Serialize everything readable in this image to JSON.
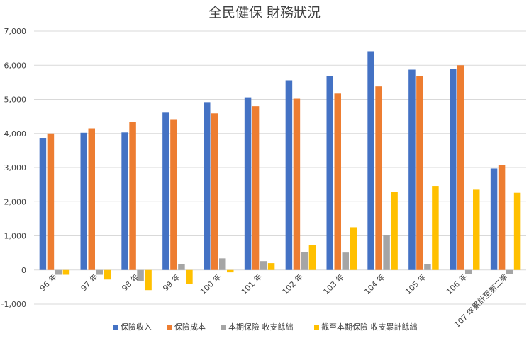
{
  "chart_data": {
    "type": "bar",
    "title": "全民健保 財務狀況",
    "categories": [
      "96 年",
      "97 年",
      "98 年",
      "99 年",
      "100 年",
      "101 年",
      "102 年",
      "103 年",
      "104 年",
      "105 年",
      "106 年",
      "107 年累計至第二季"
    ],
    "series": [
      {
        "name": "保險收入",
        "color": "#4472c4",
        "values": [
          3870,
          4020,
          4030,
          4610,
          4920,
          5060,
          5560,
          5690,
          6410,
          5870,
          5890,
          2970
        ]
      },
      {
        "name": "保險成本",
        "color": "#ed7d31",
        "values": [
          4000,
          4150,
          4330,
          4420,
          4590,
          4800,
          5020,
          5170,
          5380,
          5690,
          6000,
          3070
        ]
      },
      {
        "name": "本期保險 收支餘絀",
        "color": "#a5a5a5",
        "values": [
          -140,
          -140,
          -330,
          180,
          340,
          260,
          530,
          510,
          1030,
          180,
          -120,
          -110
        ]
      },
      {
        "name": "截至本期保險 收支累計餘絀",
        "color": "#ffc000",
        "values": [
          -140,
          -280,
          -590,
          -410,
          -70,
          200,
          740,
          1250,
          2280,
          2460,
          2370,
          2260
        ]
      }
    ],
    "yticks": [
      "-1,000",
      "0",
      "1,000",
      "2,000",
      "3,000",
      "4,000",
      "5,000",
      "6,000",
      "7,000"
    ],
    "ylim": [
      -1000,
      7000
    ],
    "grid": true,
    "legend": "bottom"
  }
}
